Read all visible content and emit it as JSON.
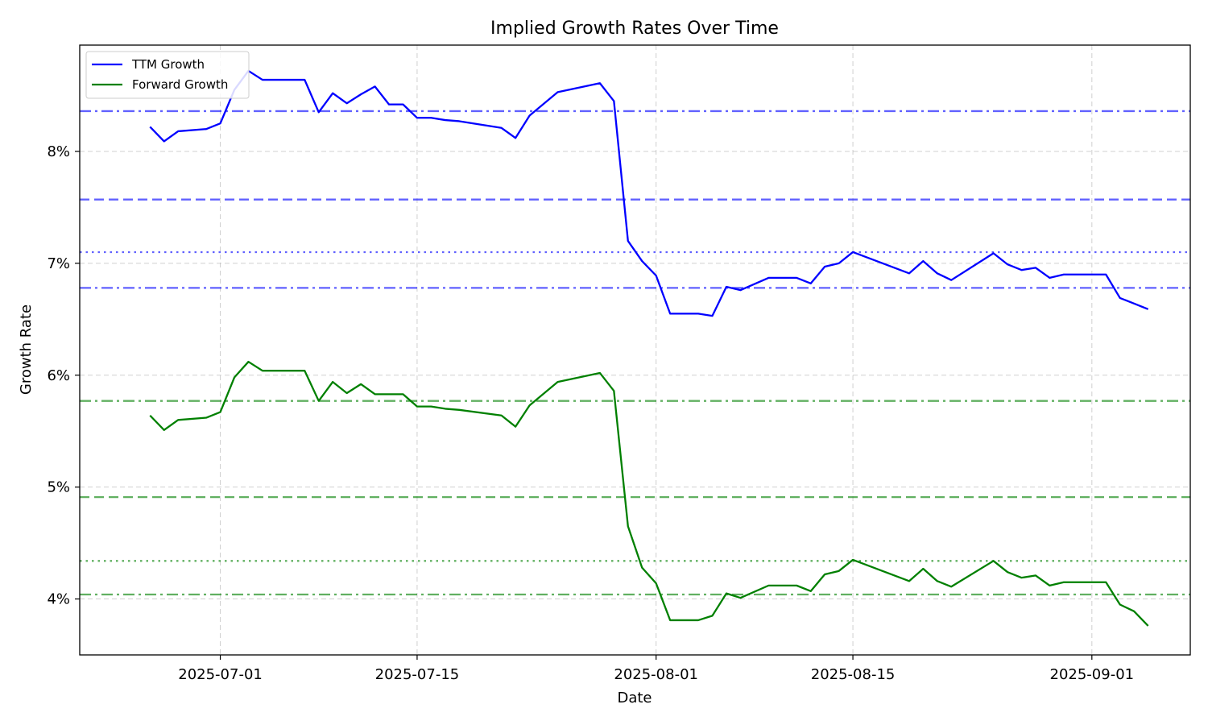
{
  "chart_data": {
    "type": "line",
    "title": "Implied Growth Rates Over Time",
    "xlabel": "Date",
    "ylabel": "Growth Rate",
    "x_axis_type": "date",
    "xlim": [
      "2025-06-21",
      "2025-09-08"
    ],
    "ylim": [
      3.5,
      8.95
    ],
    "x_ticks": [
      "2025-07-01",
      "2025-07-15",
      "2025-08-01",
      "2025-08-15",
      "2025-09-01"
    ],
    "y_ticks": [
      4,
      5,
      6,
      7,
      8
    ],
    "y_tick_format": "percent",
    "grid": true,
    "legend_position": "top-left",
    "series": [
      {
        "name": "TTM Growth",
        "color": "#0000ff",
        "points": [
          [
            "2025-06-26",
            8.22
          ],
          [
            "2025-06-27",
            8.09
          ],
          [
            "2025-06-28",
            8.18
          ],
          [
            "2025-06-30",
            8.2
          ],
          [
            "2025-07-01",
            8.25
          ],
          [
            "2025-07-02",
            8.55
          ],
          [
            "2025-07-03",
            8.72
          ],
          [
            "2025-07-04",
            8.64
          ],
          [
            "2025-07-07",
            8.64
          ],
          [
            "2025-07-08",
            8.35
          ],
          [
            "2025-07-09",
            8.52
          ],
          [
            "2025-07-10",
            8.43
          ],
          [
            "2025-07-11",
            8.51
          ],
          [
            "2025-07-12",
            8.58
          ],
          [
            "2025-07-13",
            8.42
          ],
          [
            "2025-07-14",
            8.42
          ],
          [
            "2025-07-15",
            8.3
          ],
          [
            "2025-07-16",
            8.3
          ],
          [
            "2025-07-17",
            8.28
          ],
          [
            "2025-07-18",
            8.27
          ],
          [
            "2025-07-21",
            8.21
          ],
          [
            "2025-07-22",
            8.12
          ],
          [
            "2025-07-23",
            8.32
          ],
          [
            "2025-07-25",
            8.53
          ],
          [
            "2025-07-28",
            8.61
          ],
          [
            "2025-07-29",
            8.45
          ],
          [
            "2025-07-30",
            7.2
          ],
          [
            "2025-07-31",
            7.02
          ],
          [
            "2025-08-01",
            6.89
          ],
          [
            "2025-08-02",
            6.55
          ],
          [
            "2025-08-04",
            6.55
          ],
          [
            "2025-08-05",
            6.53
          ],
          [
            "2025-08-06",
            6.79
          ],
          [
            "2025-08-07",
            6.76
          ],
          [
            "2025-08-09",
            6.87
          ],
          [
            "2025-08-11",
            6.87
          ],
          [
            "2025-08-12",
            6.82
          ],
          [
            "2025-08-13",
            6.97
          ],
          [
            "2025-08-14",
            7.0
          ],
          [
            "2025-08-15",
            7.1
          ],
          [
            "2025-08-19",
            6.91
          ],
          [
            "2025-08-20",
            7.02
          ],
          [
            "2025-08-21",
            6.91
          ],
          [
            "2025-08-22",
            6.85
          ],
          [
            "2025-08-25",
            7.09
          ],
          [
            "2025-08-26",
            6.99
          ],
          [
            "2025-08-27",
            6.94
          ],
          [
            "2025-08-28",
            6.96
          ],
          [
            "2025-08-29",
            6.87
          ],
          [
            "2025-08-30",
            6.9
          ],
          [
            "2025-09-02",
            6.9
          ],
          [
            "2025-09-03",
            6.69
          ],
          [
            "2025-09-04",
            6.64
          ],
          [
            "2025-09-05",
            6.59
          ]
        ]
      },
      {
        "name": "Forward Growth",
        "color": "#008000",
        "points": [
          [
            "2025-06-26",
            5.64
          ],
          [
            "2025-06-27",
            5.51
          ],
          [
            "2025-06-28",
            5.6
          ],
          [
            "2025-06-30",
            5.62
          ],
          [
            "2025-07-01",
            5.67
          ],
          [
            "2025-07-02",
            5.98
          ],
          [
            "2025-07-03",
            6.12
          ],
          [
            "2025-07-04",
            6.04
          ],
          [
            "2025-07-07",
            6.04
          ],
          [
            "2025-07-08",
            5.77
          ],
          [
            "2025-07-09",
            5.94
          ],
          [
            "2025-07-10",
            5.84
          ],
          [
            "2025-07-11",
            5.92
          ],
          [
            "2025-07-12",
            5.83
          ],
          [
            "2025-07-13",
            5.83
          ],
          [
            "2025-07-14",
            5.83
          ],
          [
            "2025-07-15",
            5.72
          ],
          [
            "2025-07-16",
            5.72
          ],
          [
            "2025-07-17",
            5.7
          ],
          [
            "2025-07-18",
            5.69
          ],
          [
            "2025-07-21",
            5.64
          ],
          [
            "2025-07-22",
            5.54
          ],
          [
            "2025-07-23",
            5.73
          ],
          [
            "2025-07-25",
            5.94
          ],
          [
            "2025-07-28",
            6.02
          ],
          [
            "2025-07-29",
            5.86
          ],
          [
            "2025-07-30",
            4.65
          ],
          [
            "2025-07-31",
            4.28
          ],
          [
            "2025-08-01",
            4.14
          ],
          [
            "2025-08-02",
            3.81
          ],
          [
            "2025-08-04",
            3.81
          ],
          [
            "2025-08-05",
            3.85
          ],
          [
            "2025-08-06",
            4.05
          ],
          [
            "2025-08-07",
            4.01
          ],
          [
            "2025-08-09",
            4.12
          ],
          [
            "2025-08-11",
            4.12
          ],
          [
            "2025-08-12",
            4.07
          ],
          [
            "2025-08-13",
            4.22
          ],
          [
            "2025-08-14",
            4.25
          ],
          [
            "2025-08-15",
            4.35
          ],
          [
            "2025-08-19",
            4.16
          ],
          [
            "2025-08-20",
            4.27
          ],
          [
            "2025-08-21",
            4.16
          ],
          [
            "2025-08-22",
            4.11
          ],
          [
            "2025-08-25",
            4.34
          ],
          [
            "2025-08-26",
            4.24
          ],
          [
            "2025-08-27",
            4.19
          ],
          [
            "2025-08-28",
            4.21
          ],
          [
            "2025-08-29",
            4.12
          ],
          [
            "2025-08-30",
            4.15
          ],
          [
            "2025-09-02",
            4.15
          ],
          [
            "2025-09-03",
            3.95
          ],
          [
            "2025-09-04",
            3.89
          ],
          [
            "2025-09-05",
            3.76
          ]
        ]
      }
    ],
    "reference_lines": [
      {
        "y": 8.36,
        "style": "dashdot",
        "color": "#0000ff"
      },
      {
        "y": 7.57,
        "style": "dashed",
        "color": "#0000ff"
      },
      {
        "y": 7.1,
        "style": "dotted",
        "color": "#0000ff"
      },
      {
        "y": 6.78,
        "style": "dashdot",
        "color": "#0000ff"
      },
      {
        "y": 5.77,
        "style": "dashdot",
        "color": "#008000"
      },
      {
        "y": 4.91,
        "style": "dashed",
        "color": "#008000"
      },
      {
        "y": 4.34,
        "style": "dotted",
        "color": "#008000"
      },
      {
        "y": 4.04,
        "style": "dashdot",
        "color": "#008000"
      }
    ]
  }
}
